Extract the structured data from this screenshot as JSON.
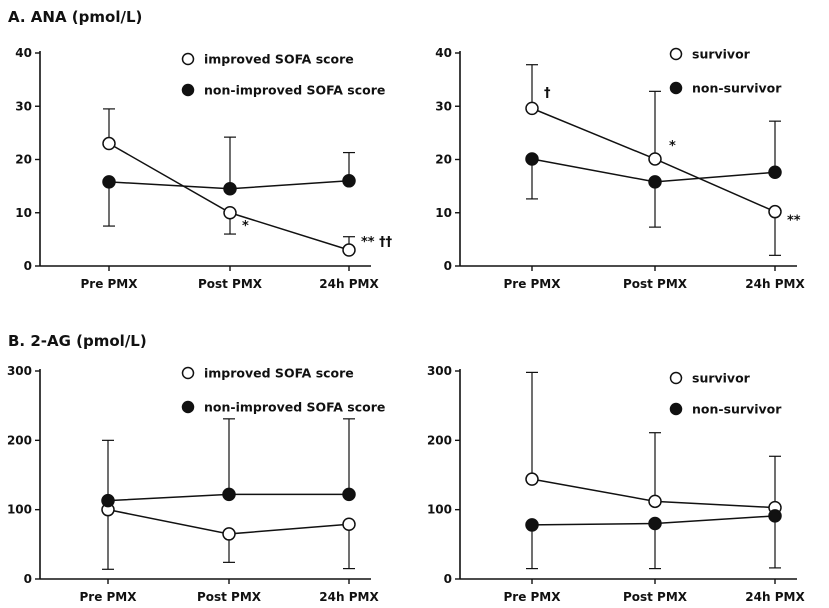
{
  "sections": [
    {
      "title": "A. ANA (pmol/L)"
    },
    {
      "title": "B. 2-AG (pmol/L)"
    }
  ],
  "chart_data": [
    {
      "type": "line",
      "section": "A. ANA (pmol/L)",
      "categories": [
        "Pre PMX",
        "Post PMX",
        "24h PMX"
      ],
      "ylim": [
        0,
        40
      ],
      "yticks": [
        0,
        10,
        20,
        30,
        40
      ],
      "series": [
        {
          "name": "improved SOFA score",
          "marker": "open-circle",
          "values": [
            23,
            10,
            3
          ],
          "err_upper": [
            29.5,
            6,
            5.5
          ],
          "err_lower": [
            null,
            null,
            null
          ]
        },
        {
          "name": "non-improved SOFA score",
          "marker": "filled-circle",
          "values": [
            15.8,
            14.5,
            16
          ],
          "err_upper": [
            null,
            24.2,
            21.3
          ],
          "err_lower": [
            7.5,
            null,
            null
          ]
        }
      ],
      "annotations": [
        {
          "text": "*",
          "category": "Post PMX",
          "y": 7.5
        },
        {
          "text": "** ††",
          "category": "24h PMX",
          "y": 4.5
        }
      ],
      "legend": "top-right"
    },
    {
      "type": "line",
      "section": "A. ANA (pmol/L)",
      "categories": [
        "Pre PMX",
        "Post PMX",
        "24h PMX"
      ],
      "ylim": [
        0,
        40
      ],
      "yticks": [
        0,
        10,
        20,
        30,
        40
      ],
      "series": [
        {
          "name": "survivor",
          "marker": "open-circle",
          "values": [
            29.6,
            20.1,
            10.2
          ],
          "err_upper": [
            37.8,
            32.8,
            null
          ],
          "err_lower": [
            null,
            null,
            2
          ]
        },
        {
          "name": "non-survivor",
          "marker": "filled-circle",
          "values": [
            20.1,
            15.8,
            17.6
          ],
          "err_upper": [
            null,
            null,
            27.2
          ],
          "err_lower": [
            12.6,
            7.3,
            null
          ]
        }
      ],
      "annotations": [
        {
          "text": "†",
          "category": "Pre PMX",
          "y": 32.5
        },
        {
          "text": "*",
          "category": "Post PMX",
          "y": 22.5
        },
        {
          "text": "**",
          "category": "24h PMX",
          "y": 8.5
        }
      ],
      "legend": "top-right"
    },
    {
      "type": "line",
      "section": "B. 2-AG (pmol/L)",
      "categories": [
        "Pre PMX",
        "Post PMX",
        "24h PMX"
      ],
      "ylim": [
        0,
        300
      ],
      "yticks": [
        0,
        100,
        200,
        300
      ],
      "series": [
        {
          "name": "improved SOFA score",
          "marker": "open-circle",
          "values": [
            100,
            65,
            79
          ],
          "err_upper": [
            null,
            null,
            null
          ],
          "err_lower": [
            14,
            24,
            15
          ]
        },
        {
          "name": "non-improved SOFA score",
          "marker": "filled-circle",
          "values": [
            113,
            122,
            122
          ],
          "err_upper": [
            200,
            231,
            231
          ],
          "err_lower": [
            null,
            null,
            null
          ]
        }
      ],
      "annotations": [],
      "legend": "top-right"
    },
    {
      "type": "line",
      "section": "B. 2-AG (pmol/L)",
      "categories": [
        "Pre PMX",
        "Post PMX",
        "24h PMX"
      ],
      "ylim": [
        0,
        300
      ],
      "yticks": [
        0,
        100,
        200,
        300
      ],
      "series": [
        {
          "name": "survivor",
          "marker": "open-circle",
          "values": [
            144,
            112,
            103
          ],
          "err_upper": [
            298,
            211,
            177
          ],
          "err_lower": [
            null,
            null,
            null
          ]
        },
        {
          "name": "non-survivor",
          "marker": "filled-circle",
          "values": [
            78,
            80,
            91
          ],
          "err_upper": [
            null,
            null,
            null
          ],
          "err_lower": [
            15,
            15,
            16
          ]
        }
      ],
      "annotations": [],
      "legend": "top-right"
    }
  ]
}
